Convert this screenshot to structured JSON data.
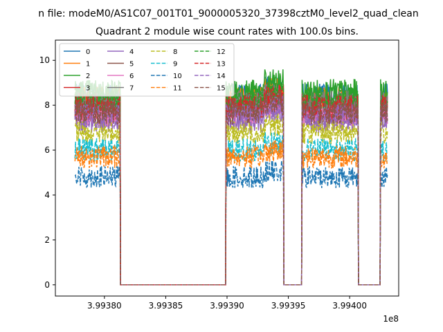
{
  "figure": {
    "suptitle": "n file: modeM0/AS1C07_001T01_9000005320_37398cztM0_level2_quad_clean",
    "title": "Quadrant 2 module wise count rates with 100.0s bins.",
    "offset_text": "1e8"
  },
  "chart_data": {
    "type": "line",
    "title": "Quadrant 2 module wise count rates with 100.0s bins.",
    "xlabel": "",
    "ylabel": "",
    "x_offset": "1e8",
    "xlim": [
      3.99376,
      3.99404
    ],
    "ylim": [
      -0.5,
      10.9
    ],
    "x_ticks": [
      3.9938,
      3.99385,
      3.9939,
      3.99395,
      3.994
    ],
    "x_tick_labels": [
      "3.99380",
      "3.99385",
      "3.99390",
      "3.99395",
      "3.99400"
    ],
    "y_ticks": [
      0,
      2,
      4,
      6,
      8,
      10
    ],
    "y_tick_labels": [
      "0",
      "2",
      "4",
      "6",
      "8",
      "10"
    ],
    "grid": false,
    "legend": {
      "placement": "top-left",
      "columns": 4
    },
    "segments": [
      [
        3.993776,
        3.993813
      ],
      [
        3.993899,
        3.993946
      ],
      [
        3.993961,
        3.994007
      ],
      [
        3.994025,
        3.994031
      ]
    ],
    "gaps": [
      [
        3.993814,
        3.993897
      ],
      [
        3.993948,
        3.993959
      ],
      [
        3.994008,
        3.994023
      ]
    ],
    "series": [
      {
        "name": "0",
        "color": "#1f77b4",
        "dash": "solid",
        "level": 8.4
      },
      {
        "name": "1",
        "color": "#ff7f0e",
        "dash": "solid",
        "level": 8.3
      },
      {
        "name": "2",
        "color": "#2ca02c",
        "dash": "solid",
        "level": 8.6
      },
      {
        "name": "3",
        "color": "#d62728",
        "dash": "solid",
        "level": 8.0
      },
      {
        "name": "4",
        "color": "#9467bd",
        "dash": "solid",
        "level": 7.3
      },
      {
        "name": "5",
        "color": "#8c564b",
        "dash": "solid",
        "level": 7.8
      },
      {
        "name": "6",
        "color": "#e377c2",
        "dash": "solid",
        "level": 7.6
      },
      {
        "name": "7",
        "color": "#7f7f7f",
        "dash": "solid",
        "level": 8.1
      },
      {
        "name": "8",
        "color": "#bcbd22",
        "dash": "dashed",
        "level": 6.8
      },
      {
        "name": "9",
        "color": "#17becf",
        "dash": "dashed",
        "level": 6.0
      },
      {
        "name": "10",
        "color": "#1f77b4",
        "dash": "dashed",
        "level": 4.8
      },
      {
        "name": "11",
        "color": "#ff7f0e",
        "dash": "dashed",
        "level": 5.7
      },
      {
        "name": "12",
        "color": "#2ca02c",
        "dash": "dashed",
        "level": 8.2
      },
      {
        "name": "13",
        "color": "#d62728",
        "dash": "dashed",
        "level": 7.9
      },
      {
        "name": "14",
        "color": "#9467bd",
        "dash": "dashed",
        "level": 7.5
      },
      {
        "name": "15",
        "color": "#8c564b",
        "dash": "dashed",
        "level": 7.7
      }
    ]
  }
}
